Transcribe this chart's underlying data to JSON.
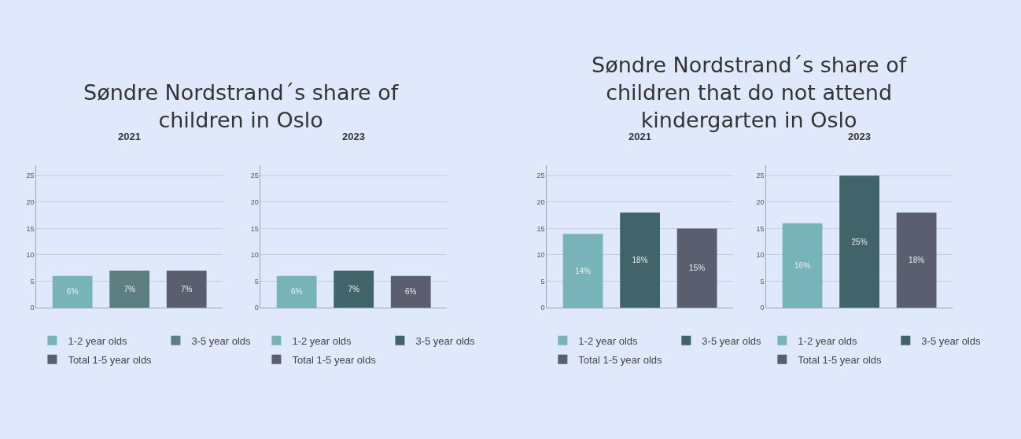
{
  "chart_data": [
    {
      "type": "bar",
      "title": "2021",
      "annotations": [
        "Søndre Nordstrand´s share of\nchildren in Oslo"
      ],
      "categories": [
        null
      ],
      "ylim": [
        0,
        27
      ],
      "yticks": [
        0,
        5,
        10,
        15,
        20,
        25
      ],
      "grid": "y",
      "legend": "bottom",
      "series": [
        {
          "name": "1-2 year olds",
          "color": "#78b3b9",
          "values": [
            6
          ],
          "value_labels": [
            "6%"
          ]
        },
        {
          "name": "3-5 year olds",
          "color": "#5e7f81",
          "values": [
            7
          ],
          "value_labels": [
            "7%"
          ]
        },
        {
          "name": "Total 1-5 year olds",
          "color": "#5b5e6e",
          "values": [
            7
          ],
          "value_labels": [
            "7%"
          ]
        }
      ]
    },
    {
      "type": "bar",
      "title": "2023",
      "categories": [
        null
      ],
      "ylim": [
        0,
        27
      ],
      "yticks": [
        0,
        5,
        10,
        15,
        20,
        25
      ],
      "grid": "y",
      "legend": "bottom",
      "series": [
        {
          "name": "1-2 year olds",
          "color": "#78b3b9",
          "values": [
            6
          ],
          "value_labels": [
            "6%"
          ]
        },
        {
          "name": "3-5 year olds",
          "color": "#41636a",
          "values": [
            7
          ],
          "value_labels": [
            "7%"
          ]
        },
        {
          "name": "Total 1-5 year olds",
          "color": "#5b5e6e",
          "values": [
            6
          ],
          "value_labels": [
            "6%"
          ]
        }
      ]
    },
    {
      "type": "bar",
      "title": "2021",
      "annotations": [
        "Søndre Nordstrand´s share of\nchildren that do not attend\nkindergarten in Oslo"
      ],
      "categories": [
        null
      ],
      "ylim": [
        0,
        27
      ],
      "yticks": [
        0,
        5,
        10,
        15,
        20,
        25
      ],
      "grid": "y",
      "legend": "bottom",
      "series": [
        {
          "name": "1-2 year olds",
          "color": "#78b3b9",
          "values": [
            14
          ],
          "value_labels": [
            "14%"
          ]
        },
        {
          "name": "3-5 year olds",
          "color": "#41636a",
          "values": [
            18
          ],
          "value_labels": [
            "18%"
          ]
        },
        {
          "name": "Total 1-5 year olds",
          "color": "#5b5e6e",
          "values": [
            15
          ],
          "value_labels": [
            "15%"
          ]
        }
      ]
    },
    {
      "type": "bar",
      "title": "2023",
      "categories": [
        null
      ],
      "ylim": [
        0,
        27
      ],
      "yticks": [
        0,
        5,
        10,
        15,
        20,
        25
      ],
      "grid": "y",
      "legend": "bottom",
      "series": [
        {
          "name": "1-2 year olds",
          "color": "#78b3b9",
          "values": [
            16
          ],
          "value_labels": [
            "16%"
          ]
        },
        {
          "name": "3-5 year olds",
          "color": "#41636a",
          "values": [
            25
          ],
          "value_labels": [
            "25%"
          ]
        },
        {
          "name": "Total 1-5 year olds",
          "color": "#5b5e6e",
          "values": [
            18
          ],
          "value_labels": [
            "18%"
          ]
        }
      ]
    }
  ]
}
